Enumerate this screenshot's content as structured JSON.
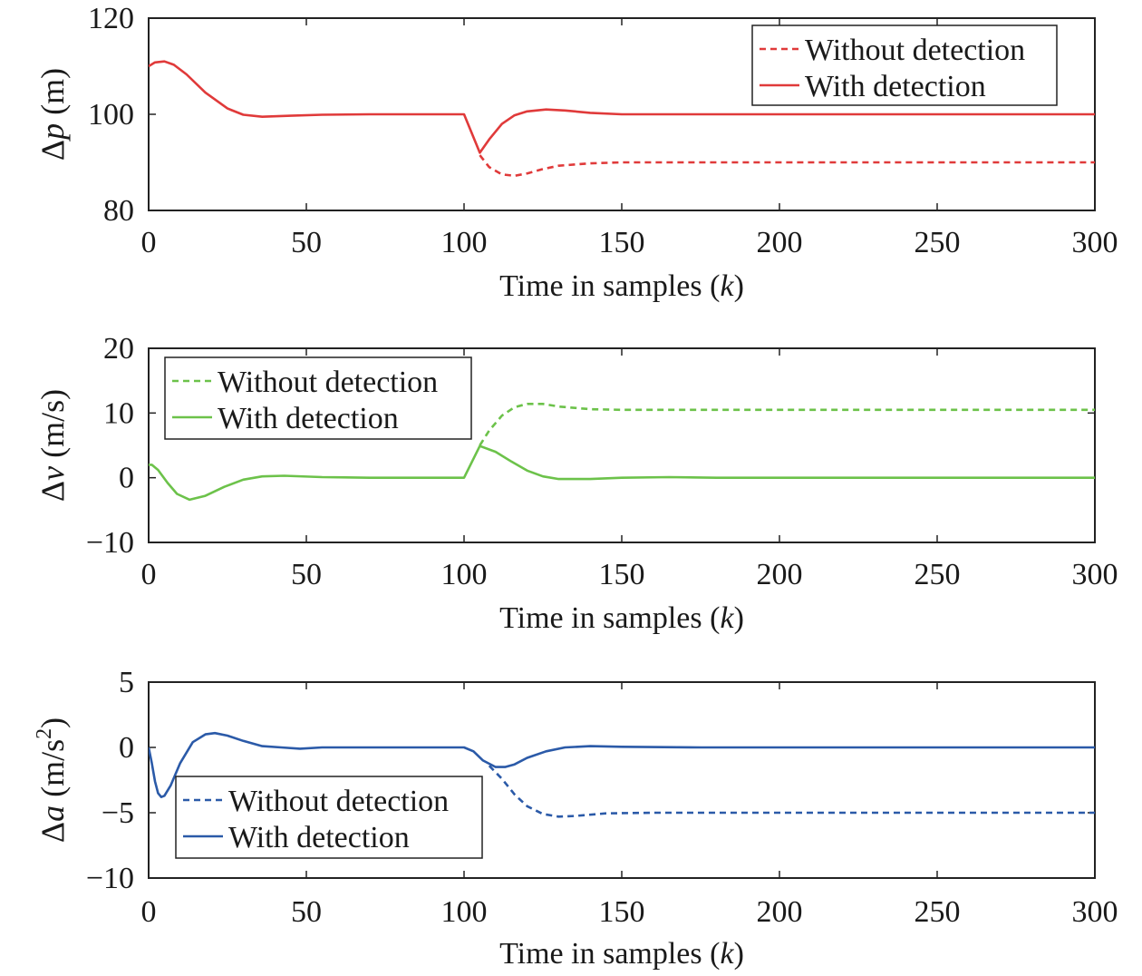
{
  "chart_data": [
    {
      "type": "line",
      "ylabel_delta": "Δ",
      "ylabel_symbol": "p",
      "ylabel_unit": " (m)",
      "ylabel_sup": "",
      "xlabel_text": "Time in samples (",
      "xlabel_var": "k",
      "xlabel_close": ")",
      "xlim": [
        0,
        300
      ],
      "ylim": [
        80,
        120
      ],
      "xticks": [
        0,
        50,
        100,
        150,
        200,
        250,
        300
      ],
      "yticks": [
        80,
        100,
        120
      ],
      "ytick_labels": [
        "80",
        "100",
        "120"
      ],
      "color": "#e03a3a",
      "legend": {
        "position": "top-right",
        "entries": [
          "Without detection",
          "With detection"
        ]
      },
      "series": [
        {
          "name": "Without detection",
          "style": "dashed",
          "x": [
            105,
            108,
            112,
            116,
            120,
            125,
            130,
            140,
            150,
            175,
            200,
            250,
            300
          ],
          "y": [
            91.5,
            89.0,
            87.5,
            87.2,
            87.7,
            88.6,
            89.3,
            89.8,
            90.0,
            90.0,
            90.0,
            90.0,
            90.0
          ]
        },
        {
          "name": "With detection",
          "style": "solid",
          "x": [
            0,
            2,
            5,
            8,
            12,
            18,
            25,
            30,
            36,
            45,
            55,
            70,
            85,
            100,
            105,
            108,
            112,
            116,
            120,
            126,
            132,
            140,
            150,
            175,
            200,
            250,
            300
          ],
          "y": [
            110,
            110.8,
            111,
            110.3,
            108.3,
            104.5,
            101.2,
            99.9,
            99.5,
            99.7,
            99.9,
            100.0,
            100.0,
            100.0,
            92,
            94.8,
            98.0,
            99.8,
            100.6,
            101.0,
            100.8,
            100.3,
            100.0,
            100.0,
            100.0,
            100.0,
            100.0
          ]
        }
      ]
    },
    {
      "type": "line",
      "ylabel_delta": "Δ",
      "ylabel_symbol": "v",
      "ylabel_unit": " (m/s)",
      "ylabel_sup": "",
      "xlabel_text": "Time in samples (",
      "xlabel_var": "k",
      "xlabel_close": ")",
      "xlim": [
        0,
        300
      ],
      "ylim": [
        -10,
        20
      ],
      "xticks": [
        0,
        50,
        100,
        150,
        200,
        250,
        300
      ],
      "yticks": [
        -10,
        0,
        10,
        20
      ],
      "ytick_labels": [
        "−10",
        "0",
        "10",
        "20"
      ],
      "color": "#6cc24a",
      "legend": {
        "position": "top-left",
        "entries": [
          "Without detection",
          "With detection"
        ]
      },
      "series": [
        {
          "name": "Without detection",
          "style": "dashed",
          "x": [
            105,
            108,
            112,
            116,
            120,
            125,
            130,
            140,
            150,
            175,
            200,
            250,
            300
          ],
          "y": [
            5.0,
            7.3,
            9.6,
            10.9,
            11.4,
            11.4,
            11.0,
            10.6,
            10.5,
            10.5,
            10.5,
            10.5,
            10.5
          ]
        },
        {
          "name": "With detection",
          "style": "solid",
          "x": [
            0,
            1,
            3,
            6,
            9,
            13,
            18,
            24,
            30,
            36,
            43,
            55,
            70,
            85,
            100,
            105,
            110,
            115,
            120,
            125,
            130,
            140,
            150,
            165,
            180,
            200,
            250,
            300
          ],
          "y": [
            2.0,
            2.0,
            1.2,
            -0.8,
            -2.5,
            -3.4,
            -2.8,
            -1.4,
            -0.3,
            0.2,
            0.3,
            0.1,
            0.0,
            0.0,
            0.0,
            4.9,
            4.0,
            2.5,
            1.1,
            0.2,
            -0.2,
            -0.2,
            0.0,
            0.1,
            0.0,
            0.0,
            0.0,
            0.0
          ]
        }
      ]
    },
    {
      "type": "line",
      "ylabel_delta": "Δ",
      "ylabel_symbol": "a",
      "ylabel_unit": " (m/s",
      "ylabel_sup": "2",
      "ylabel_tail": ")",
      "xlabel_text": "Time in samples (",
      "xlabel_var": "k",
      "xlabel_close": ")",
      "xlim": [
        0,
        300
      ],
      "ylim": [
        -10,
        5
      ],
      "xticks": [
        0,
        50,
        100,
        150,
        200,
        250,
        300
      ],
      "yticks": [
        -10,
        -5,
        0,
        5
      ],
      "ytick_labels": [
        "−10",
        "−5",
        "0",
        "5"
      ],
      "color": "#2b5aa8",
      "legend": {
        "position": "bottom-left",
        "entries": [
          "Without detection",
          "With detection"
        ]
      },
      "series": [
        {
          "name": "Without detection",
          "style": "dashed",
          "x": [
            108,
            112,
            116,
            120,
            125,
            130,
            135,
            145,
            160,
            180,
            200,
            250,
            300
          ],
          "y": [
            -1.4,
            -2.4,
            -3.6,
            -4.5,
            -5.1,
            -5.3,
            -5.25,
            -5.05,
            -5.0,
            -5.0,
            -5.0,
            -5.0,
            -5.0
          ]
        },
        {
          "name": "With detection",
          "style": "solid",
          "x": [
            0,
            1,
            2,
            3,
            4,
            5,
            7,
            10,
            14,
            18,
            21,
            25,
            30,
            36,
            42,
            48,
            55,
            70,
            85,
            100,
            103,
            106,
            110,
            113,
            116,
            120,
            126,
            132,
            140,
            150,
            175,
            200,
            250,
            300
          ],
          "y": [
            0,
            -1.2,
            -2.6,
            -3.5,
            -3.8,
            -3.7,
            -2.9,
            -1.2,
            0.4,
            1.0,
            1.1,
            0.9,
            0.5,
            0.1,
            0.0,
            -0.1,
            0.0,
            0.0,
            0.0,
            0.0,
            -0.3,
            -1.0,
            -1.5,
            -1.5,
            -1.3,
            -0.8,
            -0.3,
            0.0,
            0.1,
            0.05,
            0.0,
            0.0,
            0.0,
            0.0
          ]
        }
      ]
    }
  ]
}
